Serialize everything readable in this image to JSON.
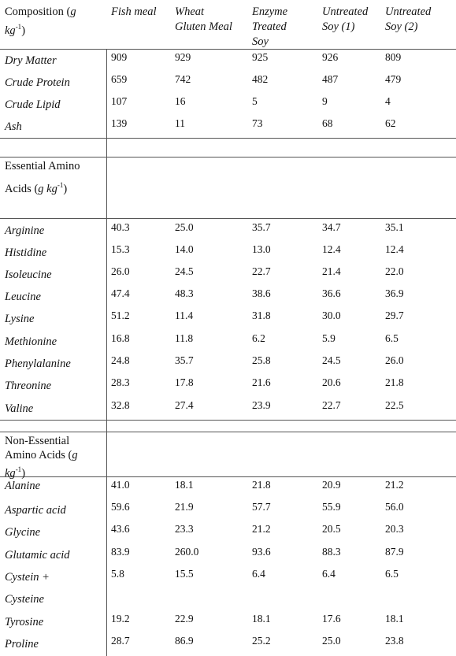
{
  "header": {
    "first_col": [
      "Composition (",
      "g",
      " ",
      "kg",
      "-1",
      ")"
    ],
    "cols": [
      [
        "Fish meal"
      ],
      [
        "Wheat",
        "Gluten Meal"
      ],
      [
        "Enzyme",
        "Treated",
        "Soy"
      ],
      [
        "Untreated",
        "Soy (1)"
      ],
      [
        "Untreated",
        "Soy (2)"
      ]
    ]
  },
  "composition": [
    {
      "name": "Dry Matter",
      "values": [
        "909",
        "929",
        "925",
        "926",
        "809"
      ]
    },
    {
      "name": "Crude Protein",
      "values": [
        "659",
        "742",
        "482",
        "487",
        "479"
      ]
    },
    {
      "name": "Crude Lipid",
      "values": [
        "107",
        "16",
        "5",
        "9",
        "4"
      ]
    },
    {
      "name": "Ash",
      "values": [
        "139",
        "11",
        "73",
        "68",
        "62"
      ]
    }
  ],
  "essential_header": {
    "line1": "Essential Amino",
    "line2_plain": "Acids (",
    "line2_italic": "g kg",
    "sup": "-1",
    "close": ")"
  },
  "essential": [
    {
      "name": "Arginine",
      "values": [
        "40.3",
        "25.0",
        "35.7",
        "34.7",
        "35.1"
      ]
    },
    {
      "name": "Histidine",
      "values": [
        "15.3",
        "14.0",
        "13.0",
        "12.4",
        "12.4"
      ]
    },
    {
      "name": "Isoleucine",
      "values": [
        "26.0",
        "24.5",
        "22.7",
        "21.4",
        "22.0"
      ]
    },
    {
      "name": "Leucine",
      "values": [
        "47.4",
        "48.3",
        "38.6",
        "36.6",
        "36.9"
      ]
    },
    {
      "name": "Lysine",
      "values": [
        "51.2",
        "11.4",
        "31.8",
        "30.0",
        "29.7"
      ]
    },
    {
      "name": "Methionine",
      "values": [
        "16.8",
        "11.8",
        "6.2",
        "5.9",
        "6.5"
      ]
    },
    {
      "name": "Phenylalanine",
      "values": [
        "24.8",
        "35.7",
        "25.8",
        "24.5",
        "26.0"
      ]
    },
    {
      "name": "Threonine",
      "values": [
        "28.3",
        "17.8",
        "21.6",
        "20.6",
        "21.8"
      ]
    },
    {
      "name": "Valine",
      "values": [
        "32.8",
        "27.4",
        "23.9",
        "22.7",
        "22.5"
      ]
    }
  ],
  "nonessential_header": {
    "line1": "Non-Essential",
    "line2_plain": "Amino Acids (",
    "line2_italic": "g",
    "line3_italic": "kg",
    "sup": "-1",
    "close": ")"
  },
  "nonessential": [
    {
      "name": "Alanine",
      "values": [
        "41.0",
        "18.1",
        "21.8",
        "20.9",
        "21.2"
      ]
    },
    {
      "name": "Aspartic acid",
      "values": [
        "59.6",
        "21.9",
        "57.7",
        "55.9",
        "56.0"
      ]
    },
    {
      "name": "Glycine",
      "values": [
        "43.6",
        "23.3",
        "21.2",
        "20.5",
        "20.3"
      ]
    },
    {
      "name": "Glutamic acid",
      "values": [
        "83.9",
        "260.0",
        "93.6",
        "88.3",
        "87.9"
      ]
    },
    {
      "name": "Cystein +",
      "name2": "Cysteine",
      "values": [
        "5.8",
        "15.5",
        "6.4",
        "6.4",
        "6.5"
      ]
    },
    {
      "name": "Tyrosine",
      "values": [
        "19.2",
        "22.9",
        "18.1",
        "17.6",
        "18.1"
      ]
    },
    {
      "name": "Proline",
      "values": [
        "28.7",
        "86.9",
        "25.2",
        "25.0",
        "23.8"
      ]
    }
  ]
}
